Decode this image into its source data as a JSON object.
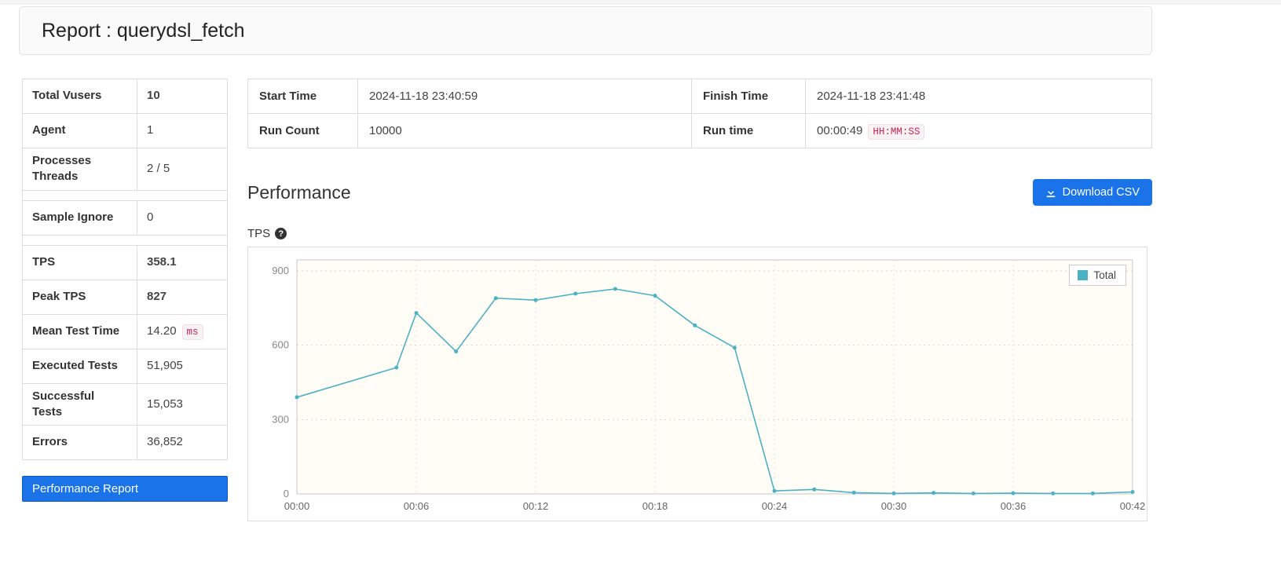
{
  "report": {
    "title": "Report : querydsl_fetch"
  },
  "summary": {
    "rows": [
      {
        "label": "Total Vusers",
        "value": "10",
        "highlight": true
      },
      {
        "label": "Agent",
        "value": "1"
      },
      {
        "label": "Processes Threads",
        "value": "2 / 5"
      },
      {
        "spacer": true
      },
      {
        "label": "Sample Ignore",
        "value": "0"
      },
      {
        "spacer": true
      },
      {
        "label": "TPS",
        "value": "358.1",
        "highlight": true
      },
      {
        "label": "Peak TPS",
        "value": "827",
        "highlight": true
      },
      {
        "label": "Mean Test Time",
        "value": "14.20",
        "badge": "ms"
      },
      {
        "label": "Executed Tests",
        "value": "51,905"
      },
      {
        "label": "Successful Tests",
        "value": "15,053"
      },
      {
        "label": "Errors",
        "value": "36,852"
      }
    ],
    "performance_report_button": "Performance Report"
  },
  "info": {
    "rows": [
      {
        "cells": [
          {
            "label": "Start Time",
            "value": "2024-11-18 23:40:59"
          },
          {
            "label": "Finish Time",
            "value": "2024-11-18 23:41:48"
          }
        ]
      },
      {
        "cells": [
          {
            "label": "Run Count",
            "value": "10000"
          },
          {
            "label": "Run time",
            "value": "00:00:49",
            "badge": "HH:MM:SS"
          }
        ]
      }
    ]
  },
  "performance": {
    "title": "Performance",
    "download_csv_button": "Download CSV",
    "tps_label": "TPS",
    "help_glyph": "?"
  },
  "chart_data": {
    "type": "line",
    "title": "TPS",
    "x_minutes": [
      0,
      5,
      6,
      8,
      10,
      12,
      14,
      16,
      18,
      20,
      22,
      24,
      26,
      28,
      30,
      32,
      34,
      36,
      38,
      40,
      42
    ],
    "series": [
      {
        "name": "Total",
        "color": "#4bb2c5",
        "values": [
          390,
          510,
          730,
          575,
          790,
          782,
          808,
          827,
          800,
          680,
          590,
          12,
          18,
          5,
          2,
          4,
          2,
          3,
          2,
          2,
          8
        ]
      }
    ],
    "x_tick_minutes": [
      0,
      6,
      12,
      18,
      24,
      30,
      36,
      42
    ],
    "x_tick_labels": [
      "00:00",
      "00:06",
      "00:12",
      "00:18",
      "00:24",
      "00:30",
      "00:36",
      "00:42"
    ],
    "y_ticks": [
      0,
      300,
      600,
      900
    ],
    "ylim": [
      0,
      900
    ],
    "xlim_minutes": [
      0,
      42
    ],
    "grid": true,
    "legend_position": "top-right",
    "grid_background": "#fffdf6"
  },
  "colors": {
    "accent_blue": "#1a73e8",
    "value_highlight_blue": "#55a0d8",
    "badge_red": "#c7254e",
    "series_teal": "#4bb2c5"
  }
}
